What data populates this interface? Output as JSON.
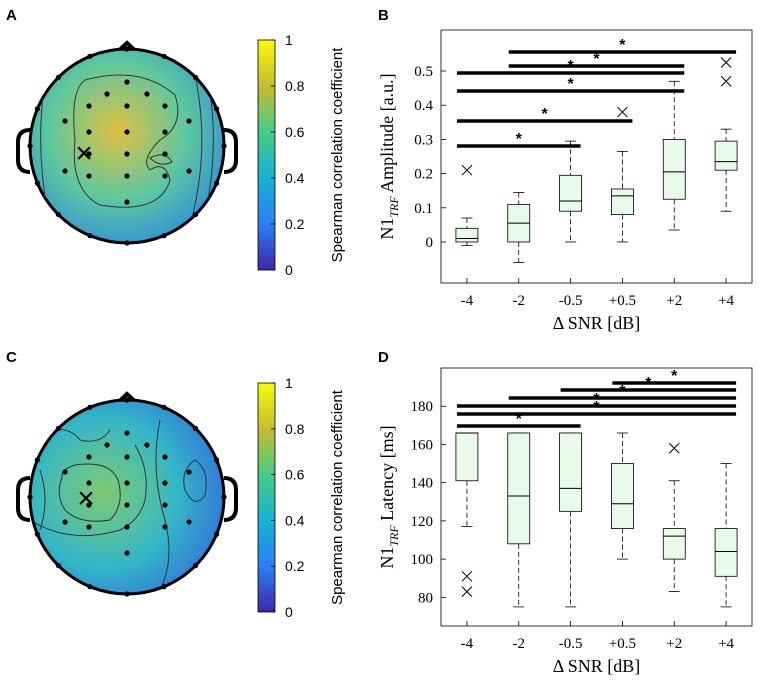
{
  "panels": {
    "A": "A",
    "B": "B",
    "C": "C",
    "D": "D"
  },
  "colorbar": {
    "label": "Spearman correlation coefficient",
    "ticks": [
      "0",
      "0.2",
      "0.4",
      "0.6",
      "0.8",
      "1"
    ],
    "range": [
      0,
      1
    ],
    "colors": [
      "#3e26a8",
      "#2c7ef7",
      "#17b1d1",
      "#48cb86",
      "#c6bc32",
      "#f9fb0e"
    ]
  },
  "topomaps": {
    "A": {
      "marker": "×",
      "base_color": "#5cc8a0",
      "center_color": "#e0c040",
      "edge_color": "#2f8bd9"
    },
    "C": {
      "marker": "×",
      "base_color": "#33b6c8",
      "center_color": "#7fcc70",
      "edge_color": "#3369dc"
    }
  },
  "chart_data": [
    {
      "type": "box",
      "panel": "B",
      "categories": [
        "-4",
        "-2",
        "-0.5",
        "+0.5",
        "+2",
        "+4"
      ],
      "xlabel": "Δ SNR [dB]",
      "ylabel_main": "N1",
      "ylabel_sub": "TRF",
      "ylabel_rest": " Amplitude [a.u.]",
      "ylim": [
        -0.12,
        0.62
      ],
      "yticks": [
        "0",
        "0.1",
        "0.2",
        "0.3",
        "0.4",
        "0.5"
      ],
      "ytick_values": [
        0,
        0.1,
        0.2,
        0.3,
        0.4,
        0.5
      ],
      "box_color": "#e8fbe8",
      "boxes": [
        {
          "whisker_low": -0.01,
          "q1": 0.0,
          "median": 0.01,
          "q3": 0.04,
          "whisker_high": 0.07,
          "outliers": [
            0.21
          ]
        },
        {
          "whisker_low": -0.06,
          "q1": 0.0,
          "median": 0.055,
          "q3": 0.11,
          "whisker_high": 0.145,
          "outliers": []
        },
        {
          "whisker_low": 0.0,
          "q1": 0.09,
          "median": 0.12,
          "q3": 0.195,
          "whisker_high": 0.295,
          "outliers": []
        },
        {
          "whisker_low": 0.0,
          "q1": 0.08,
          "median": 0.135,
          "q3": 0.155,
          "whisker_high": 0.265,
          "outliers": [
            0.38
          ]
        },
        {
          "whisker_low": 0.035,
          "q1": 0.125,
          "median": 0.205,
          "q3": 0.3,
          "whisker_high": 0.47,
          "outliers": []
        },
        {
          "whisker_low": 0.09,
          "q1": 0.21,
          "median": 0.235,
          "q3": 0.295,
          "whisker_high": 0.33,
          "outliers": [
            0.47,
            0.525
          ]
        }
      ],
      "significance": [
        {
          "from": 0,
          "to": 2,
          "label": "*"
        },
        {
          "from": 0,
          "to": 3,
          "label": "*"
        },
        {
          "from": 0,
          "to": 4,
          "label": "*"
        },
        {
          "from": 0,
          "to": 4,
          "label": "*"
        },
        {
          "from": 1,
          "to": 4,
          "label": "*"
        },
        {
          "from": 1,
          "to": 5,
          "label": "*"
        }
      ]
    },
    {
      "type": "box",
      "panel": "D",
      "categories": [
        "-4",
        "-2",
        "-0.5",
        "+0.5",
        "+2",
        "+4"
      ],
      "xlabel": "Δ SNR [dB]",
      "ylabel_main": "N1",
      "ylabel_sub": "TRF",
      "ylabel_rest": " Latency [ms]",
      "ylim": [
        65,
        200
      ],
      "yticks": [
        "80",
        "100",
        "120",
        "140",
        "160",
        "180"
      ],
      "ytick_values": [
        80,
        100,
        120,
        140,
        160,
        180
      ],
      "box_color": "#e8fbe8",
      "boxes": [
        {
          "whisker_low": 117,
          "q1": 141,
          "median": 166,
          "q3": 166,
          "whisker_high": 166,
          "outliers": [
            83,
            91
          ]
        },
        {
          "whisker_low": 75,
          "q1": 108,
          "median": 133,
          "q3": 166,
          "whisker_high": 166,
          "outliers": []
        },
        {
          "whisker_low": 75,
          "q1": 125,
          "median": 137,
          "q3": 166,
          "whisker_high": 166,
          "outliers": []
        },
        {
          "whisker_low": 100,
          "q1": 116,
          "median": 129,
          "q3": 150,
          "whisker_high": 166,
          "outliers": []
        },
        {
          "whisker_low": 83,
          "q1": 100,
          "median": 112,
          "q3": 116,
          "whisker_high": 141,
          "outliers": [
            158
          ]
        },
        {
          "whisker_low": 75,
          "q1": 91,
          "median": 104,
          "q3": 116,
          "whisker_high": 150,
          "outliers": []
        }
      ],
      "significance": [
        {
          "from": 0,
          "to": 5,
          "label": "*"
        },
        {
          "from": 0,
          "to": 5,
          "label": "*"
        },
        {
          "from": 1,
          "to": 5,
          "label": "*"
        },
        {
          "from": 2,
          "to": 5,
          "label": "*"
        },
        {
          "from": 3,
          "to": 5,
          "label": "*"
        },
        {
          "from": 0,
          "to": 2,
          "label": "*"
        }
      ]
    }
  ]
}
